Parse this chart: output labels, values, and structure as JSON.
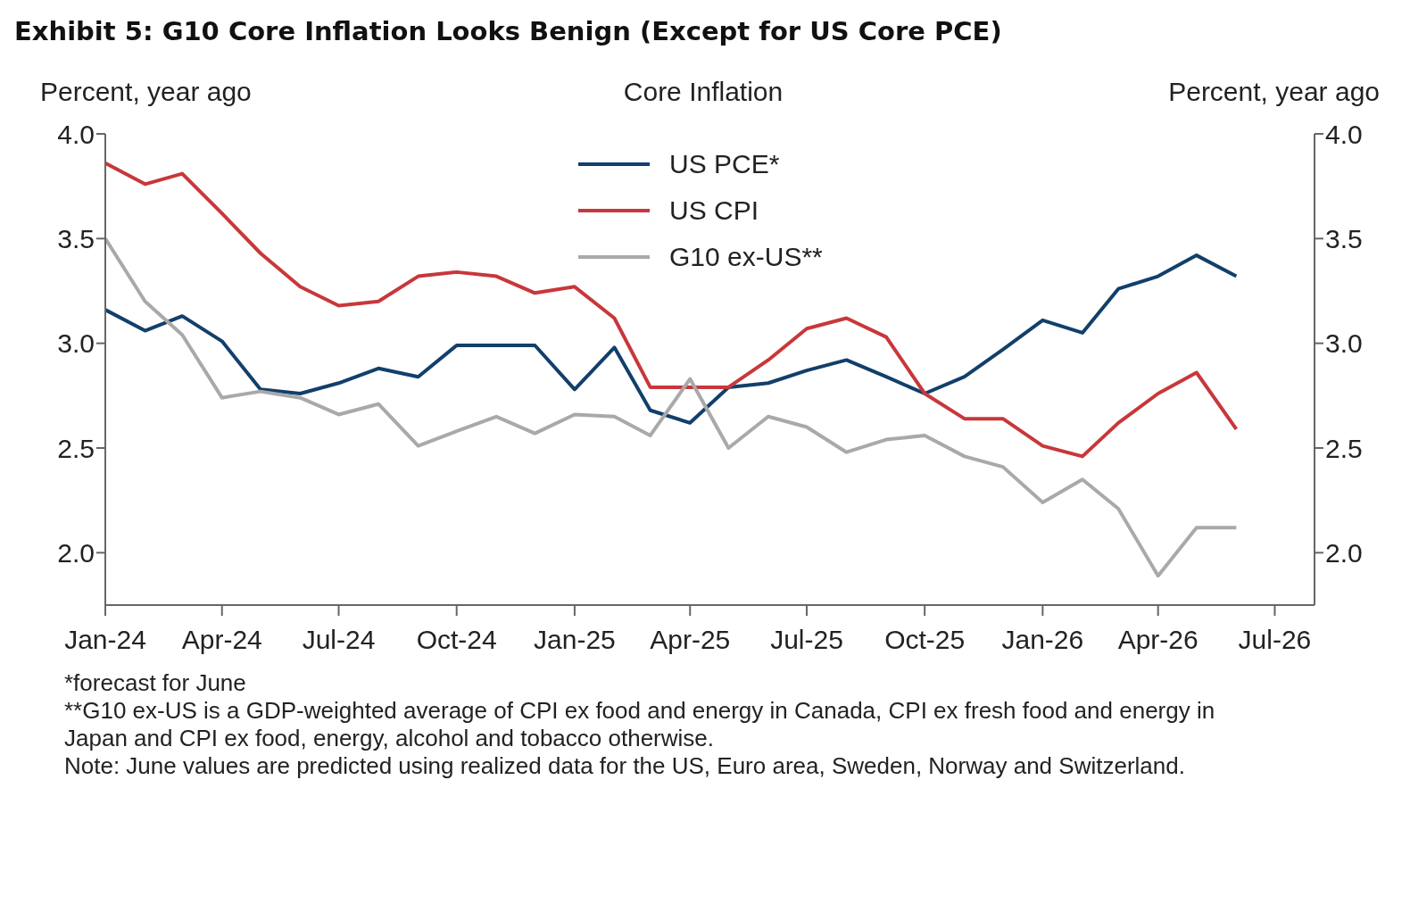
{
  "chart_data": {
    "type": "line",
    "title": "Exhibit 5: G10 Core Inflation Looks Benign (Except for US Core PCE)",
    "subtitle": "Core Inflation",
    "ylabel": "Percent, year ago",
    "y2label": "Percent, year ago",
    "x": [
      "2024-01",
      "2024-02",
      "2024-03",
      "2024-04",
      "2024-05",
      "2024-06",
      "2024-07",
      "2024-08",
      "2024-09",
      "2024-10",
      "2024-11",
      "2024-12",
      "2025-01",
      "2025-02",
      "2025-03",
      "2025-04",
      "2025-05",
      "2025-06",
      "2025-07",
      "2025-08",
      "2025-09",
      "2025-10",
      "2025-11",
      "2025-12",
      "2026-01",
      "2026-02",
      "2026-03",
      "2026-04",
      "2026-05",
      "2026-06"
    ],
    "series": [
      {
        "name": "US PCE*",
        "color": "#123f6b",
        "values": [
          3.16,
          3.06,
          3.13,
          3.01,
          2.78,
          2.76,
          2.81,
          2.88,
          2.84,
          2.99,
          2.99,
          2.99,
          2.78,
          2.98,
          2.68,
          2.62,
          2.79,
          2.81,
          2.87,
          2.92,
          2.84,
          2.76,
          2.84,
          2.97,
          3.11,
          3.05,
          3.26,
          3.32,
          3.42,
          3.32
        ]
      },
      {
        "name": "US CPI",
        "color": "#c8373b",
        "values": [
          3.86,
          3.76,
          3.81,
          3.62,
          3.43,
          3.27,
          3.18,
          3.2,
          3.32,
          3.34,
          3.32,
          3.24,
          3.27,
          3.12,
          2.79,
          2.79,
          2.79,
          2.92,
          3.07,
          3.12,
          3.03,
          2.76,
          2.64,
          2.64,
          2.51,
          2.46,
          2.62,
          2.76,
          2.86,
          2.59
        ]
      },
      {
        "name": "G10 ex-US**",
        "color": "#a9a9a9",
        "values": [
          3.5,
          3.2,
          3.04,
          2.74,
          2.77,
          2.74,
          2.66,
          2.71,
          2.51,
          2.58,
          2.65,
          2.57,
          2.66,
          2.65,
          2.56,
          2.83,
          2.5,
          2.65,
          2.6,
          2.48,
          2.54,
          2.56,
          2.46,
          2.41,
          2.24,
          2.35,
          2.21,
          1.89,
          2.12,
          2.12
        ]
      }
    ],
    "xlim": [
      "2024-01",
      "2026-08"
    ],
    "xticks": [
      {
        "value": "2024-01",
        "label": "Jan-24"
      },
      {
        "value": "2024-04",
        "label": "Apr-24"
      },
      {
        "value": "2024-07",
        "label": "Jul-24"
      },
      {
        "value": "2024-10",
        "label": "Oct-24"
      },
      {
        "value": "2025-01",
        "label": "Jan-25"
      },
      {
        "value": "2025-04",
        "label": "Apr-25"
      },
      {
        "value": "2025-07",
        "label": "Jul-25"
      },
      {
        "value": "2025-10",
        "label": "Oct-25"
      },
      {
        "value": "2026-01",
        "label": "Jan-26"
      },
      {
        "value": "2026-04",
        "label": "Apr-26"
      },
      {
        "value": "2026-07",
        "label": "Jul-26"
      }
    ],
    "ylim": [
      1.75,
      4.0
    ],
    "yticks": [
      {
        "value": 2,
        "label": "2.0"
      },
      {
        "value": 2.5,
        "label": "2.5"
      },
      {
        "value": 3,
        "label": "3.0"
      },
      {
        "value": 3.5,
        "label": "3.5"
      },
      {
        "value": 4,
        "label": "4.0"
      }
    ],
    "y2lim": [
      1.75,
      4.0
    ],
    "y2ticks": [
      {
        "value": 2,
        "label": "2.0"
      },
      {
        "value": 2.5,
        "label": "2.5"
      },
      {
        "value": 3,
        "label": "3.0"
      },
      {
        "value": 3.5,
        "label": "3.5"
      },
      {
        "value": 4,
        "label": "4.0"
      }
    ],
    "legend": "top",
    "grid": false,
    "marker": "none",
    "line_style": "solid",
    "annotations": [
      "*forecast for June",
      "**G10 ex-US is a GDP-weighted average of CPI ex food and energy in Canada, CPI ex fresh food and energy in Japan and CPI ex food, energy, alcohol and tobacco otherwise.",
      "Note: June values are predicted using realized data for the US, Euro area, Sweden, Norway and Switzerland."
    ]
  }
}
